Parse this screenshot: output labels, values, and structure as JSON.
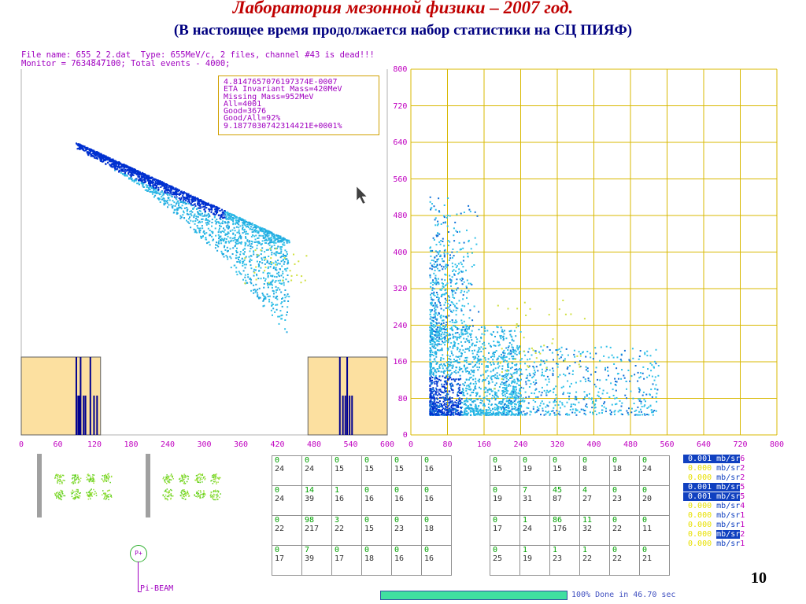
{
  "header": {
    "title": "Лаборатория мезонной физики – 2007 год.",
    "subtitle": "(В настоящее время продолжается набор статистики на СЦ ПИЯФ)"
  },
  "file_info": {
    "line1": "File name: 655_2_2.dat  Type: 655MeV/c, 2 files, channel #43 is dead!!!",
    "line2": "Monitor = 7634847100; Total events - 4000;"
  },
  "stats_box": [
    "4.8147657076197374E-0007",
    "ETA Invariant Mass=420MeV",
    "Missing Mass=952MeV",
    "All=4001",
    "Good=3676",
    "Good/All=92%",
    "9.1877030742314421E+0001%"
  ],
  "left_plot": {
    "x_ticks": [
      "0",
      "60",
      "120",
      "180",
      "240",
      "300",
      "360",
      "420",
      "480",
      "540",
      "600"
    ]
  },
  "right_plot": {
    "x_ticks": [
      "0",
      "80",
      "160",
      "240",
      "320",
      "400",
      "480",
      "560",
      "640",
      "720",
      "800"
    ],
    "y_ticks": [
      "800",
      "720",
      "640",
      "560",
      "480",
      "400",
      "320",
      "240",
      "160",
      "80",
      "0"
    ]
  },
  "counter_table_left": [
    [
      [
        "0",
        "24"
      ],
      [
        "0",
        "24"
      ],
      [
        "0",
        "15"
      ],
      [
        "0",
        "15"
      ],
      [
        "0",
        "15"
      ],
      [
        "0",
        "16"
      ]
    ],
    [
      [
        "0",
        "24"
      ],
      [
        "14",
        "39"
      ],
      [
        "1",
        "16"
      ],
      [
        "0",
        "16"
      ],
      [
        "0",
        "16"
      ],
      [
        "0",
        "16"
      ]
    ],
    [
      [
        "0",
        "22"
      ],
      [
        "98",
        "217"
      ],
      [
        "3",
        "22"
      ],
      [
        "0",
        "15"
      ],
      [
        "0",
        "23"
      ],
      [
        "0",
        "18"
      ]
    ],
    [
      [
        "0",
        "17"
      ],
      [
        "7",
        "39"
      ],
      [
        "0",
        "17"
      ],
      [
        "0",
        "18"
      ],
      [
        "0",
        "16"
      ],
      [
        "0",
        "16"
      ]
    ]
  ],
  "counter_table_right": [
    [
      [
        "0",
        "15"
      ],
      [
        "0",
        "19"
      ],
      [
        "0",
        "15"
      ],
      [
        "0",
        "8"
      ],
      [
        "0",
        "18"
      ],
      [
        "0",
        "24"
      ]
    ],
    [
      [
        "0",
        "19"
      ],
      [
        "7",
        "31"
      ],
      [
        "45",
        "87"
      ],
      [
        "4",
        "27"
      ],
      [
        "0",
        "23"
      ],
      [
        "0",
        "20"
      ]
    ],
    [
      [
        "0",
        "17"
      ],
      [
        "1",
        "24"
      ],
      [
        "86",
        "176"
      ],
      [
        "11",
        "32"
      ],
      [
        "0",
        "22"
      ],
      [
        "0",
        "11"
      ]
    ],
    [
      [
        "0",
        "25"
      ],
      [
        "1",
        "19"
      ],
      [
        "1",
        "23"
      ],
      [
        "1",
        "22"
      ],
      [
        "0",
        "22"
      ],
      [
        "0",
        "21"
      ]
    ]
  ],
  "cross_sections": [
    {
      "value": "0.001",
      "unit": "mb/sr",
      "channel": "6"
    },
    {
      "value": "0.000",
      "unit": "mb/sr",
      "channel": "2"
    },
    {
      "value": "0.000",
      "unit": "mb/sr",
      "channel": "2"
    },
    {
      "value": "0.001",
      "unit": "mb/sr",
      "channel": "5"
    },
    {
      "value": "0.001",
      "unit": "mb/sr",
      "channel": "5"
    },
    {
      "value": "0.000",
      "unit": "mb/sr",
      "channel": "4"
    },
    {
      "value": "0.000",
      "unit": "mb/sr",
      "channel": "1"
    },
    {
      "value": "0.000",
      "unit": "mb/sr",
      "channel": "1"
    },
    {
      "value": "0.000",
      "unit": "mb/sr",
      "channel": "2"
    },
    {
      "value": "0.000",
      "unit": "mb/sr",
      "channel": "1"
    }
  ],
  "beam": {
    "particle": "P+",
    "label": "Pi-BEAM"
  },
  "progress": {
    "percent": 100,
    "text": "100% Done in 46.70 sec"
  },
  "page_number": "10",
  "colors": {
    "title": "#c00000",
    "subtitle": "#000080",
    "grid": "#d8b800",
    "histogram_bg": "#fce0a0",
    "histogram_bar": "#000090",
    "scatter_dense": "#0030d0",
    "scatter_light": "#30c0e8",
    "scatter_yellow": "#d0e040",
    "tick_text": "#c000c0"
  },
  "chart_data": [
    {
      "type": "scatter",
      "x_ticks": [
        0,
        60,
        120,
        180,
        240,
        300,
        360,
        420,
        480,
        540,
        600
      ],
      "xlim": [
        0,
        600
      ],
      "band_start": [
        88,
        480
      ],
      "band_end": [
        435,
        320
      ],
      "histograms": [
        {
          "xlim": [
            0,
            130
          ],
          "spikes": [
            89,
            92,
            94,
            96,
            101,
            104,
            112,
            118,
            123
          ]
        },
        {
          "xlim": [
            470,
            600
          ],
          "spikes": [
            521,
            526,
            530,
            533,
            537,
            541
          ]
        }
      ]
    },
    {
      "type": "scatter",
      "xlim": [
        0,
        800
      ],
      "ylim": [
        0,
        800
      ],
      "grid": true,
      "x_ticks": [
        0,
        80,
        160,
        240,
        320,
        400,
        480,
        560,
        640,
        720,
        800
      ],
      "y_ticks": [
        0,
        80,
        160,
        240,
        320,
        400,
        480,
        560,
        640,
        720,
        800
      ],
      "dense_region": {
        "x": [
          40,
          240
        ],
        "y": [
          45,
          240
        ]
      },
      "tail_x": [
        240,
        560
      ],
      "tail_y": [
        45,
        200
      ],
      "vertical_arm_y": [
        200,
        560
      ]
    }
  ]
}
